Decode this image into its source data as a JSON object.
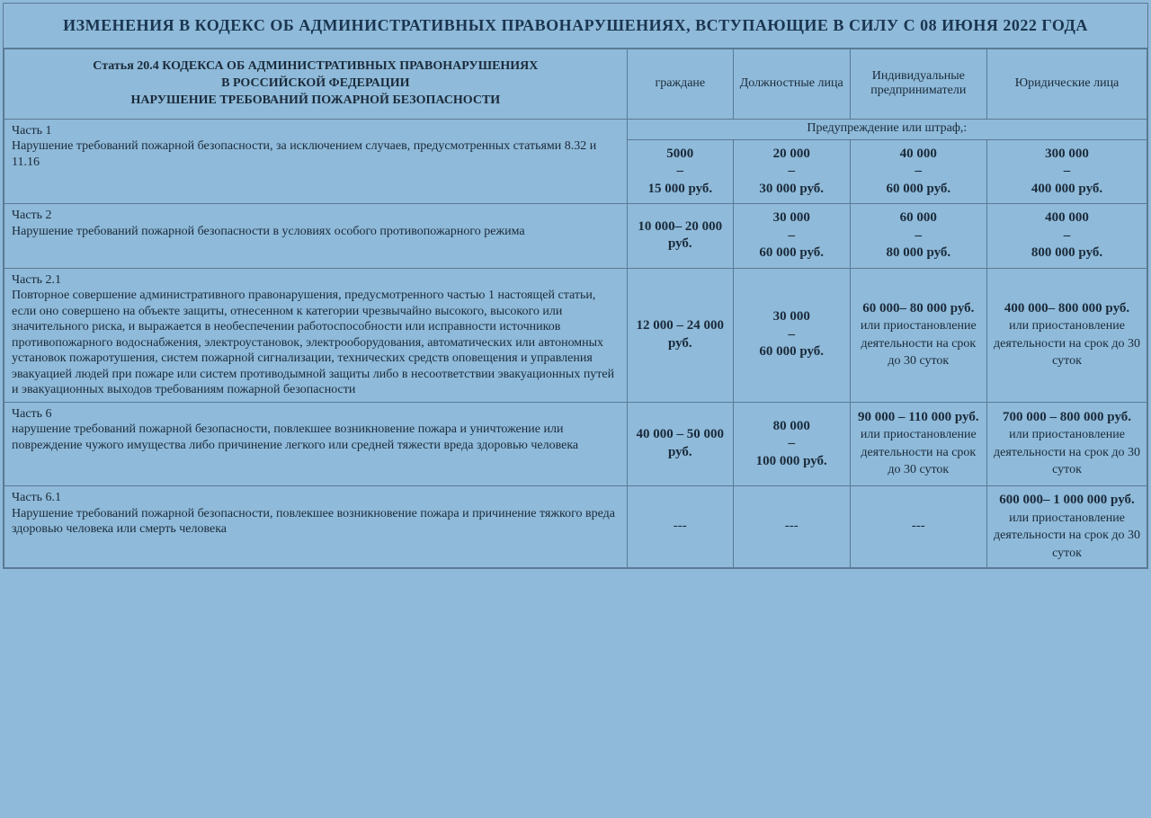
{
  "title": "ИЗМЕНЕНИЯ В КОДЕКС ОБ АДМИНИСТРАТИВНЫХ ПРАВОНАРУШЕНИЯХ,  ВСТУПАЮЩИЕ В СИЛУ С 08 ИЮНЯ 2022 ГОДА",
  "header": {
    "article_l1": "Статья 20.4 КОДЕКСА ОБ АДМИНИСТРАТИВНЫХ ПРАВОНАРУШЕНИЯХ",
    "article_l2": "В РОССИЙСКОЙ ФЕДЕРАЦИИ",
    "article_l3": "НАРУШЕНИЕ ТРЕБОВАНИЙ ПОЖАРНОЙ БЕЗОПАСНОСТИ",
    "col1": "граждане",
    "col2": "Должностные лица",
    "col3": "Индивидуальные предприниматели",
    "col4": "Юридические лица"
  },
  "group1": "Предупреждение или штраф,:",
  "rows": [
    {
      "part": "Часть 1",
      "desc": "Нарушение требований пожарной безопасности, за исключением случаев, предусмотренных статьями 8.32 и 11.16",
      "v1": "5000\n–\n15 000 руб.",
      "v2": "20 000\n–\n30 000 руб.",
      "v3": "40 000\n–\n60 000 руб.",
      "v4": "300 000\n–\n400 000 руб."
    },
    {
      "part": "Часть 2",
      "desc": "Нарушение требований пожарной безопасности в условиях особого противопожарного режима",
      "v1": "10 000– 20 000 руб.",
      "v2": "30 000\n–\n60 000 руб.",
      "v3": "60 000\n–\n80 000 руб.",
      "v4": "400 000\n–\n800 000 руб."
    },
    {
      "part": "Часть 2.1",
      "desc": "Повторное совершение административного правонарушения, предусмотренного частью 1 настоящей статьи, если оно совершено на объекте защиты, отнесенном к категории чрезвычайно высокого, высокого или значительного риска, и выражается в необеспечении работоспособности или исправности источников противопожарного водоснабжения, электроустановок, электрооборудования, автоматических или автономных установок пожаротушения, систем пожарной сигнализации, технических средств оповещения и управления эвакуацией людей при пожаре или систем противодымной защиты либо в несоответствии эвакуационных путей и эвакуационных выходов требованиям пожарной безопасности",
      "v1": "12 000 – 24 000 руб.",
      "v2": "30 000\n–\n60 000 руб.",
      "v3": "60 000– 80 000 руб.",
      "v3_extra": "или приостановление деятельности на срок до 30 суток",
      "v4": "400 000– 800 000 руб.",
      "v4_extra": "или приостановление деятельности на срок до 30 суток"
    },
    {
      "part": "Часть 6",
      "desc": "нарушение требований пожарной безопасности, повлекшее возникновение пожара и уничтожение или повреждение чужого имущества либо причинение легкого или средней тяжести вреда здоровью человека",
      "v1": "40 000 – 50 000 руб.",
      "v2": "80 000\n–\n100 000 руб.",
      "v3": "90 000 – 110 000 руб.",
      "v3_extra": "или приостановление деятельности на срок до 30 суток",
      "v4": "700 000 – 800 000 руб.",
      "v4_extra": "или приостановление деятельности на срок до 30 суток"
    },
    {
      "part": "Часть 6.1",
      "desc": "Нарушение требований пожарной безопасности, повлекшее возникновение пожара и причинение тяжкого вреда здоровью человека или смерть человека",
      "v1": "---",
      "v2": "---",
      "v3": "---",
      "v4": "600 000– 1 000 000 руб.",
      "v4_extra": "или приостановление деятельности на срок до 30 суток"
    }
  ],
  "style": {
    "background_color": "#8fbad9",
    "border_color": "#5a7a95",
    "text_color": "#1a2a3a",
    "title_color": "#1a3550",
    "title_fontsize": 18,
    "header_fontsize": 14,
    "body_fontsize": 14,
    "value_fontsize": 15,
    "font_family": "Georgia, Times New Roman, serif",
    "column_widths_pct": [
      54.5,
      9.3,
      10.2,
      12.0,
      14.0
    ]
  }
}
